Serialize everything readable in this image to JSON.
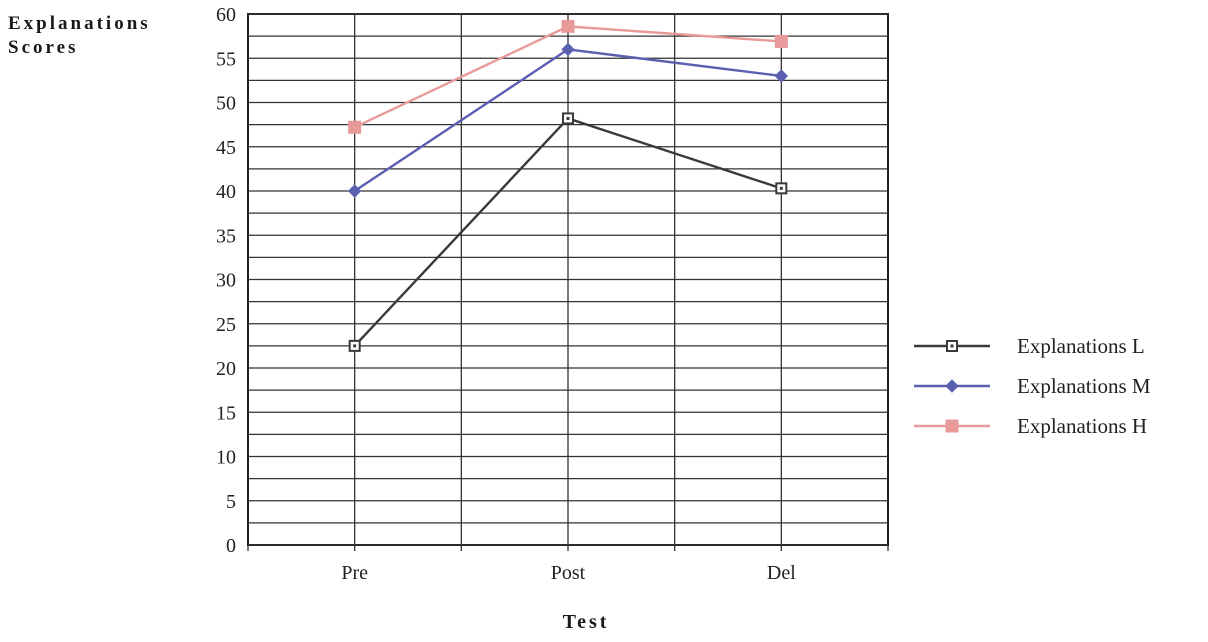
{
  "chart_data": {
    "type": "line",
    "ylabel_lines": [
      "Explanations",
      "Scores"
    ],
    "xlabel": "Test",
    "categories": [
      "Pre",
      "Post",
      "Del"
    ],
    "ylim": [
      0,
      60
    ],
    "y_ticks": [
      0,
      5,
      10,
      15,
      20,
      25,
      30,
      35,
      40,
      45,
      50,
      55,
      60
    ],
    "grid": true,
    "legend_position": "right",
    "series": [
      {
        "name": "Explanations L",
        "values": [
          22.5,
          48.2,
          40.3
        ],
        "color": "#3a3a3a",
        "marker": "square-dot"
      },
      {
        "name": "Explanations M",
        "values": [
          40.0,
          56.0,
          53.0
        ],
        "color": "#5b5fb0",
        "marker": "diamond"
      },
      {
        "name": "Explanations H",
        "values": [
          47.2,
          58.6,
          56.9
        ],
        "color": "#e89a9a",
        "marker": "square"
      }
    ]
  }
}
